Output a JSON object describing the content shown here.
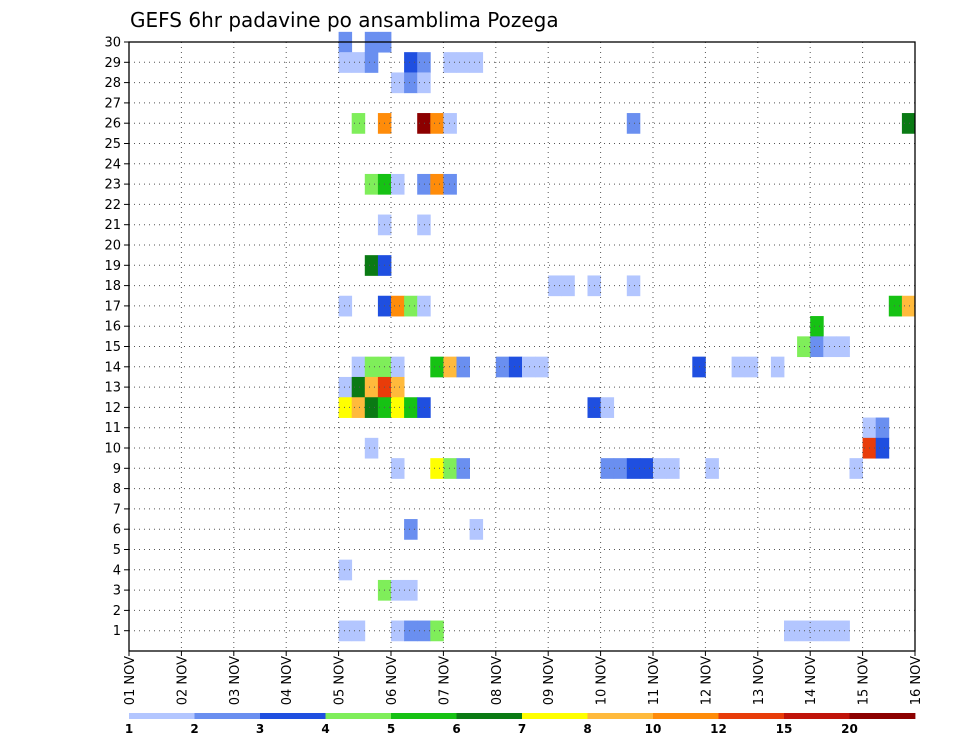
{
  "chart_data": {
    "type": "heatmap",
    "title": "GEFS 6hr padavine po ansamblima Pozega",
    "xlabel": "",
    "ylabel": "",
    "x_ticks": [
      "01 NOV",
      "02 NOV",
      "03 NOV",
      "04 NOV",
      "05 NOV",
      "06 NOV",
      "07 NOV",
      "08 NOV",
      "09 NOV",
      "10 NOV",
      "11 NOV",
      "12 NOV",
      "13 NOV",
      "14 NOV",
      "15 NOV",
      "16 NOV"
    ],
    "y_ticks": [
      "1",
      "2",
      "3",
      "4",
      "5",
      "6",
      "7",
      "8",
      "9",
      "10",
      "11",
      "12",
      "13",
      "14",
      "15",
      "16",
      "17",
      "18",
      "19",
      "20",
      "21",
      "22",
      "23",
      "24",
      "25",
      "26",
      "27",
      "28",
      "29",
      "30"
    ],
    "x_range_days": [
      1,
      16
    ],
    "y_range_members": [
      0,
      30
    ],
    "steps_per_day": 4,
    "grid": "dotted",
    "legend": {
      "placement": "bottom",
      "labels": [
        "1",
        "2",
        "3",
        "4",
        "5",
        "6",
        "7",
        "8",
        "10",
        "12",
        "15",
        "20"
      ],
      "colors": [
        "#b3c6ff",
        "#6a8ff0",
        "#1f4fe0",
        "#7fee5a",
        "#16c214",
        "#0a7a14",
        "#ffff00",
        "#ffba3c",
        "#ff8c0a",
        "#e83c0a",
        "#c0140a",
        "#8c0000"
      ]
    },
    "cells": [
      {
        "day": 5.125,
        "member": 30,
        "level": 1
      },
      {
        "day": 5.125,
        "member": 29,
        "level": 0
      },
      {
        "day": 5.375,
        "member": 29,
        "level": 0
      },
      {
        "day": 5.625,
        "member": 29,
        "level": 1
      },
      {
        "day": 6.375,
        "member": 29,
        "level": 2
      },
      {
        "day": 6.625,
        "member": 29,
        "level": 1
      },
      {
        "day": 7.125,
        "member": 29,
        "level": 0
      },
      {
        "day": 7.375,
        "member": 29,
        "level": 0
      },
      {
        "day": 7.625,
        "member": 29,
        "level": 0
      },
      {
        "day": 5.625,
        "member": 30,
        "level": 1
      },
      {
        "day": 5.875,
        "member": 30,
        "level": 1
      },
      {
        "day": 6.125,
        "member": 28,
        "level": 0
      },
      {
        "day": 6.375,
        "member": 28,
        "level": 1
      },
      {
        "day": 6.625,
        "member": 28,
        "level": 0
      },
      {
        "day": 5.375,
        "member": 26,
        "level": 3
      },
      {
        "day": 5.875,
        "member": 26,
        "level": 8
      },
      {
        "day": 6.625,
        "member": 26,
        "level": 11
      },
      {
        "day": 6.875,
        "member": 26,
        "level": 8
      },
      {
        "day": 7.125,
        "member": 26,
        "level": 0
      },
      {
        "day": 10.625,
        "member": 26,
        "level": 1
      },
      {
        "day": 15.875,
        "member": 26,
        "level": 5
      },
      {
        "day": 5.625,
        "member": 23,
        "level": 3
      },
      {
        "day": 5.875,
        "member": 23,
        "level": 4
      },
      {
        "day": 6.125,
        "member": 23,
        "level": 0
      },
      {
        "day": 6.625,
        "member": 23,
        "level": 1
      },
      {
        "day": 6.875,
        "member": 23,
        "level": 8
      },
      {
        "day": 7.125,
        "member": 23,
        "level": 1
      },
      {
        "day": 5.875,
        "member": 21,
        "level": 0
      },
      {
        "day": 6.625,
        "member": 21,
        "level": 0
      },
      {
        "day": 5.625,
        "member": 19,
        "level": 5
      },
      {
        "day": 5.875,
        "member": 19,
        "level": 2
      },
      {
        "day": 9.125,
        "member": 18,
        "level": 0
      },
      {
        "day": 9.375,
        "member": 18,
        "level": 0
      },
      {
        "day": 9.875,
        "member": 18,
        "level": 0
      },
      {
        "day": 10.625,
        "member": 18,
        "level": 0
      },
      {
        "day": 15.625,
        "member": 17,
        "level": 4
      },
      {
        "day": 15.875,
        "member": 17,
        "level": 7
      },
      {
        "day": 5.125,
        "member": 17,
        "level": 0
      },
      {
        "day": 5.875,
        "member": 17,
        "level": 2
      },
      {
        "day": 6.125,
        "member": 17,
        "level": 8
      },
      {
        "day": 6.375,
        "member": 17,
        "level": 3
      },
      {
        "day": 6.625,
        "member": 17,
        "level": 0
      },
      {
        "day": 14.125,
        "member": 16,
        "level": 4
      },
      {
        "day": 13.875,
        "member": 15,
        "level": 3
      },
      {
        "day": 14.125,
        "member": 15,
        "level": 1
      },
      {
        "day": 14.375,
        "member": 15,
        "level": 0
      },
      {
        "day": 14.625,
        "member": 15,
        "level": 0
      },
      {
        "day": 5.375,
        "member": 14,
        "level": 0
      },
      {
        "day": 5.625,
        "member": 14,
        "level": 3
      },
      {
        "day": 5.875,
        "member": 14,
        "level": 3
      },
      {
        "day": 6.125,
        "member": 14,
        "level": 0
      },
      {
        "day": 6.875,
        "member": 14,
        "level": 4
      },
      {
        "day": 7.125,
        "member": 14,
        "level": 7
      },
      {
        "day": 7.375,
        "member": 14,
        "level": 1
      },
      {
        "day": 8.125,
        "member": 14,
        "level": 1
      },
      {
        "day": 8.375,
        "member": 14,
        "level": 2
      },
      {
        "day": 8.625,
        "member": 14,
        "level": 0
      },
      {
        "day": 8.875,
        "member": 14,
        "level": 0
      },
      {
        "day": 11.875,
        "member": 14,
        "level": 2
      },
      {
        "day": 12.625,
        "member": 14,
        "level": 0
      },
      {
        "day": 12.875,
        "member": 14,
        "level": 0
      },
      {
        "day": 13.375,
        "member": 14,
        "level": 0
      },
      {
        "day": 5.125,
        "member": 13,
        "level": 0
      },
      {
        "day": 5.375,
        "member": 13,
        "level": 5
      },
      {
        "day": 5.625,
        "member": 13,
        "level": 7
      },
      {
        "day": 5.875,
        "member": 13,
        "level": 9
      },
      {
        "day": 6.125,
        "member": 13,
        "level": 7
      },
      {
        "day": 5.125,
        "member": 12,
        "level": 6
      },
      {
        "day": 5.375,
        "member": 12,
        "level": 7
      },
      {
        "day": 5.625,
        "member": 12,
        "level": 5
      },
      {
        "day": 5.875,
        "member": 12,
        "level": 4
      },
      {
        "day": 6.125,
        "member": 12,
        "level": 6
      },
      {
        "day": 6.375,
        "member": 12,
        "level": 4
      },
      {
        "day": 6.625,
        "member": 12,
        "level": 2
      },
      {
        "day": 9.875,
        "member": 12,
        "level": 2
      },
      {
        "day": 10.125,
        "member": 12,
        "level": 0
      },
      {
        "day": 15.125,
        "member": 11,
        "level": 0
      },
      {
        "day": 15.375,
        "member": 11,
        "level": 1
      },
      {
        "day": 5.625,
        "member": 10,
        "level": 0
      },
      {
        "day": 15.125,
        "member": 10,
        "level": 9
      },
      {
        "day": 15.375,
        "member": 10,
        "level": 2
      },
      {
        "day": 6.125,
        "member": 9,
        "level": 0
      },
      {
        "day": 6.875,
        "member": 9,
        "level": 6
      },
      {
        "day": 7.125,
        "member": 9,
        "level": 3
      },
      {
        "day": 7.375,
        "member": 9,
        "level": 1
      },
      {
        "day": 10.125,
        "member": 9,
        "level": 1
      },
      {
        "day": 10.375,
        "member": 9,
        "level": 1
      },
      {
        "day": 10.625,
        "member": 9,
        "level": 2
      },
      {
        "day": 10.875,
        "member": 9,
        "level": 2
      },
      {
        "day": 11.125,
        "member": 9,
        "level": 0
      },
      {
        "day": 11.375,
        "member": 9,
        "level": 0
      },
      {
        "day": 12.125,
        "member": 9,
        "level": 0
      },
      {
        "day": 14.875,
        "member": 9,
        "level": 0
      },
      {
        "day": 6.375,
        "member": 6,
        "level": 1
      },
      {
        "day": 7.625,
        "member": 6,
        "level": 0
      },
      {
        "day": 5.125,
        "member": 4,
        "level": 0
      },
      {
        "day": 5.875,
        "member": 3,
        "level": 3
      },
      {
        "day": 6.125,
        "member": 3,
        "level": 0
      },
      {
        "day": 6.375,
        "member": 3,
        "level": 0
      },
      {
        "day": 5.125,
        "member": 1,
        "level": 0
      },
      {
        "day": 5.375,
        "member": 1,
        "level": 0
      },
      {
        "day": 6.125,
        "member": 1,
        "level": 0
      },
      {
        "day": 6.375,
        "member": 1,
        "level": 1
      },
      {
        "day": 6.625,
        "member": 1,
        "level": 1
      },
      {
        "day": 6.875,
        "member": 1,
        "level": 3
      },
      {
        "day": 13.625,
        "member": 1,
        "level": 0
      },
      {
        "day": 13.875,
        "member": 1,
        "level": 0
      },
      {
        "day": 14.125,
        "member": 1,
        "level": 0
      },
      {
        "day": 14.375,
        "member": 1,
        "level": 0
      },
      {
        "day": 14.625,
        "member": 1,
        "level": 0
      }
    ]
  }
}
